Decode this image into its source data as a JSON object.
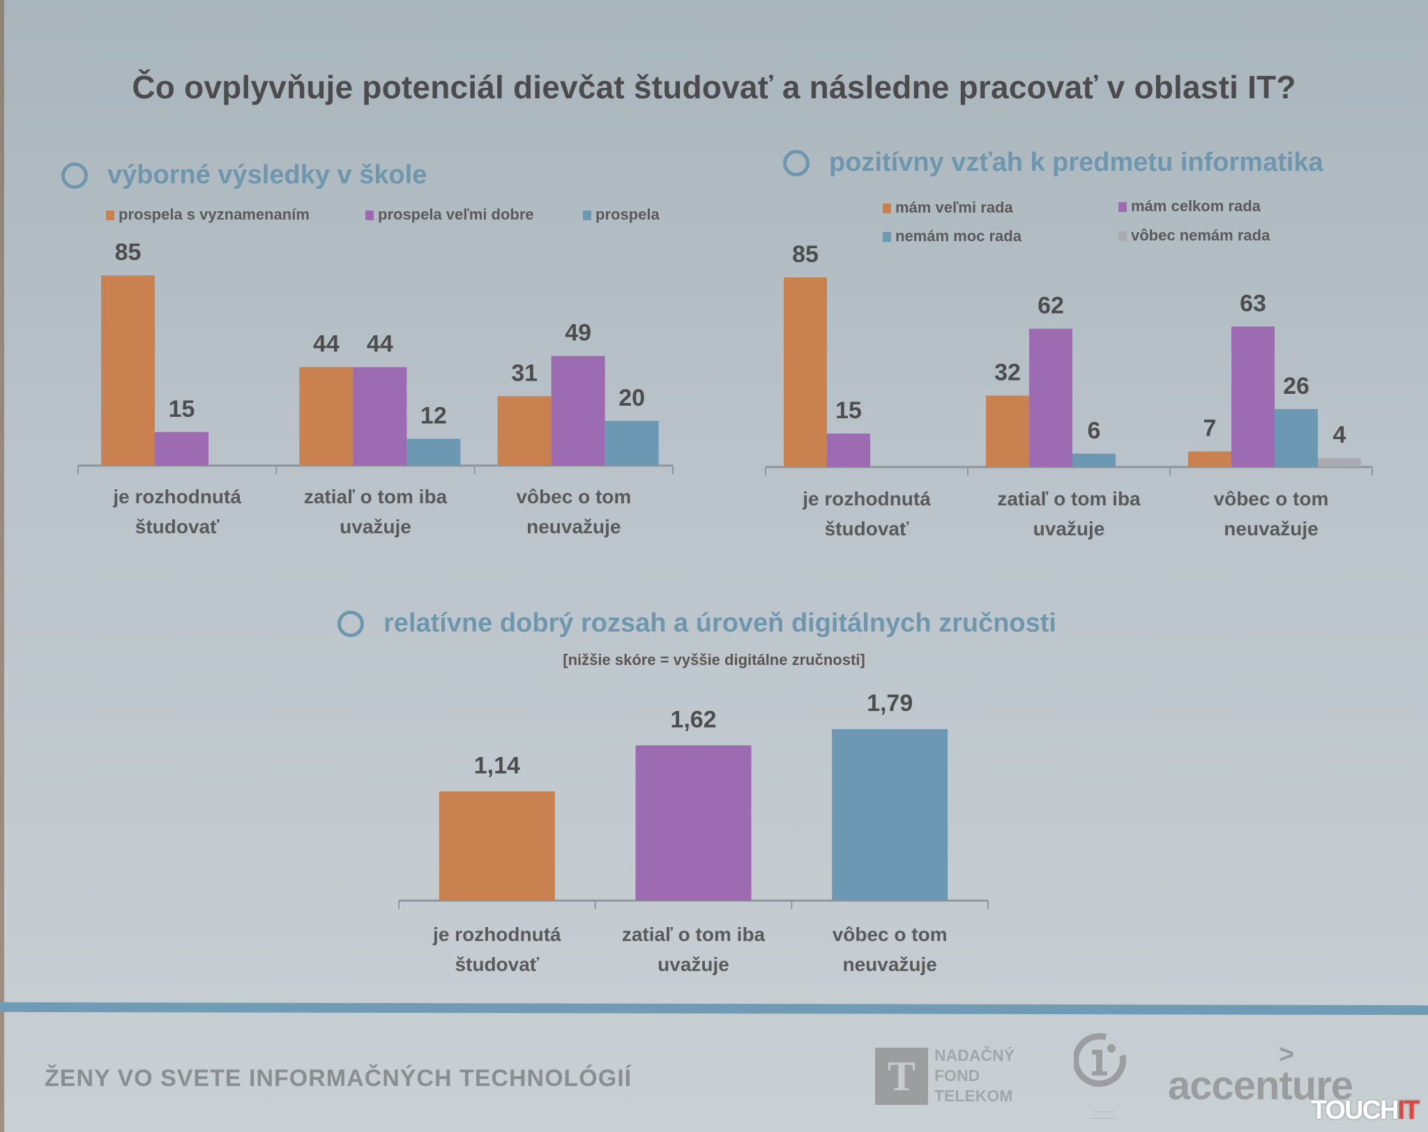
{
  "title": "Čo ovplyvňuje potenciál dievčat študovať a následne pracovať v oblasti IT?",
  "colors": {
    "orange": "#c98150",
    "purple": "#9d6bb2",
    "blue": "#6d98b4",
    "gray": "#a9abb0",
    "section": "#6e97ad",
    "axis": "#8e969c"
  },
  "chart_data": [
    {
      "type": "bar",
      "title": "výborné výsledky v škole",
      "categories": [
        [
          "je rozhodnutá",
          "študovať"
        ],
        [
          "zatiaľ o tom iba",
          "uvažuje"
        ],
        [
          "vôbec  o tom",
          "neuvažuje"
        ]
      ],
      "series": [
        {
          "name": "prospela  s vyznamenaním",
          "color": "#c98150",
          "values": [
            85,
            44,
            31
          ]
        },
        {
          "name": "prospela veľmi dobre",
          "color": "#9d6bb2",
          "values": [
            15,
            44,
            49
          ]
        },
        {
          "name": "prospela",
          "color": "#6d98b4",
          "values": [
            null,
            12,
            20
          ]
        }
      ],
      "ylim": [
        0,
        85
      ],
      "grid": false,
      "legend": "top"
    },
    {
      "type": "bar",
      "title": "pozitívny vzťah k predmetu informatika",
      "categories": [
        [
          "je rozhodnutá",
          "študovať"
        ],
        [
          "zatiaľ o tom iba",
          "uvažuje"
        ],
        [
          "vôbec o tom",
          "neuvažuje"
        ]
      ],
      "series": [
        {
          "name": "mám veľmi rada",
          "color": "#c98150",
          "values": [
            85,
            32,
            7
          ]
        },
        {
          "name": "mám celkom rada",
          "color": "#9d6bb2",
          "values": [
            15,
            62,
            63
          ]
        },
        {
          "name": "nemám moc rada",
          "color": "#6d98b4",
          "values": [
            null,
            6,
            26
          ]
        },
        {
          "name": "vôbec nemám rada",
          "color": "#a9abb0",
          "values": [
            null,
            null,
            4
          ]
        }
      ],
      "ylim": [
        0,
        85
      ],
      "grid": false,
      "legend": "top"
    },
    {
      "type": "bar",
      "title": "relatívne dobrý rozsah a úroveň digitálnych zručnosti",
      "subtitle": "[nižšie skóre = vyššie digitálne zručnosti]",
      "categories": [
        [
          "je rozhodnutá",
          "študovať"
        ],
        [
          "zatiaľ o tom iba",
          "uvažuje"
        ],
        [
          "vôbec o tom",
          "neuvažuje"
        ]
      ],
      "values": [
        1.14,
        1.62,
        1.79
      ],
      "labels": [
        "1,14",
        "1,62",
        "1,79"
      ],
      "colors": [
        "#c98150",
        "#9d6bb2",
        "#6d98b4"
      ],
      "ylim": [
        0,
        1.79
      ],
      "grid": false
    }
  ],
  "footer": {
    "text": "ŽENY VO SVETE INFORMAČNÝCH TECHNOLÓGIÍ",
    "logos": {
      "telekom_letter": "T",
      "telekom_lines": [
        "NADAČNÝ",
        "FOND",
        "TELEKOM"
      ],
      "accenture": "accenture",
      "accenture_mark": ">",
      "watermark_a": "TOUCH",
      "watermark_b": "IT"
    }
  }
}
